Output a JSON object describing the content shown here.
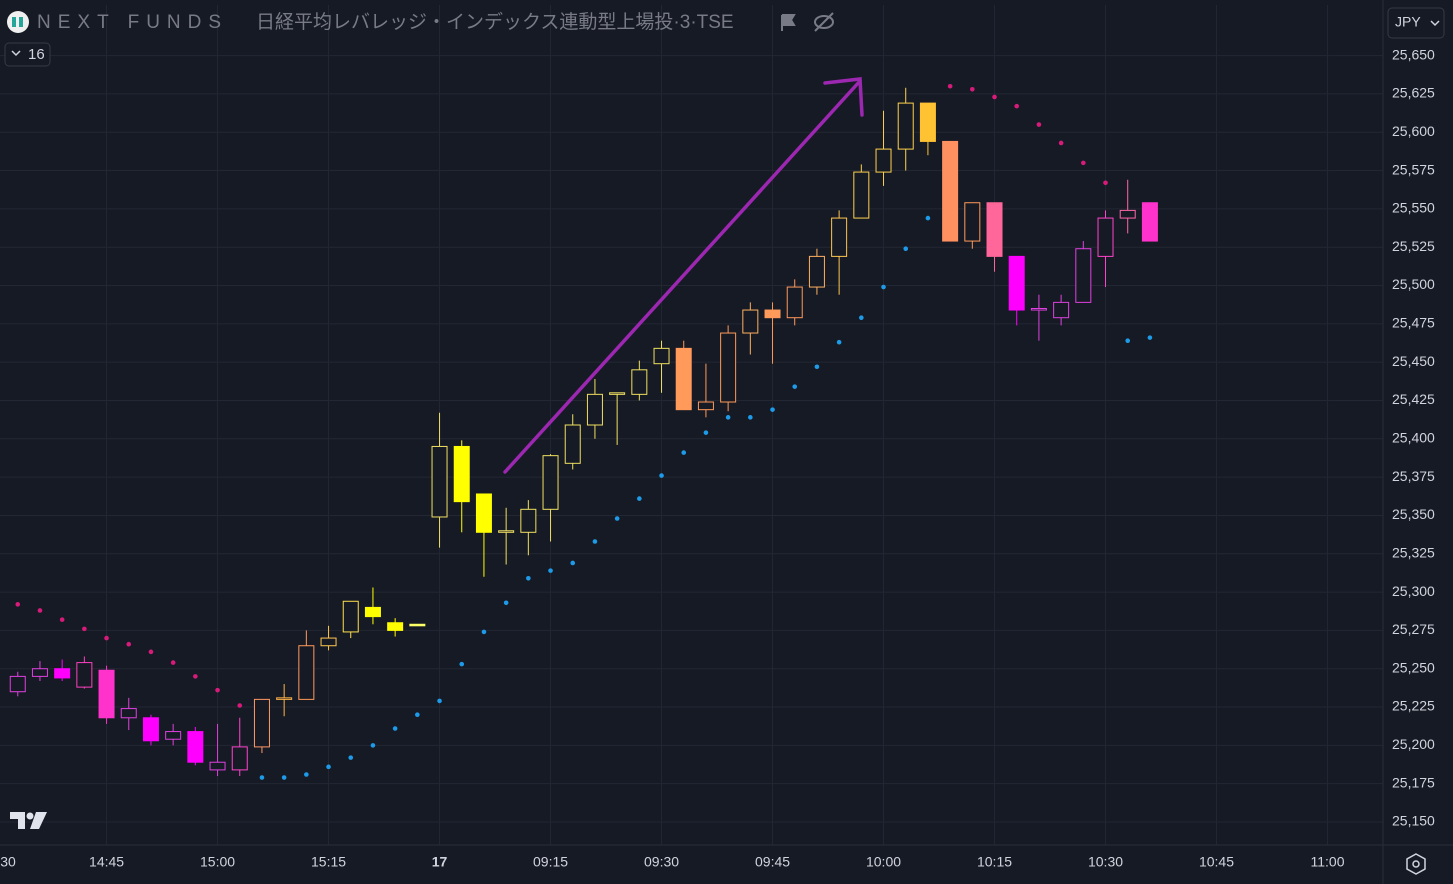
{
  "header": {
    "symbol": "NEXT FUNDS",
    "title": "日経平均レバレッジ・インデックス連動型上場投·3·TSE",
    "indicator_count": "16",
    "currency": "JPY"
  },
  "chart_data": {
    "type": "candlestick",
    "x": [
      -19,
      -18,
      -17,
      -16,
      -15,
      -14,
      -13,
      -12,
      -11,
      -10,
      -9,
      -8,
      -7,
      -6,
      -5,
      -4,
      -3,
      -2,
      -1,
      0,
      1,
      2,
      3,
      4,
      5,
      6,
      7,
      8,
      9,
      10,
      11,
      12,
      13,
      14,
      15,
      16,
      17,
      18,
      19,
      20,
      21,
      22,
      23,
      24,
      25,
      26,
      27,
      28,
      29,
      30,
      31,
      32
    ],
    "open": [
      25235,
      25245,
      25250,
      25238,
      25249,
      25218,
      25218,
      25204,
      25209,
      25184,
      25184,
      25199,
      25230,
      25230,
      25265,
      25274,
      25290,
      25280,
      25279,
      25349,
      25395,
      25364,
      25339,
      25339,
      25354,
      25384,
      25409,
      25429,
      25429,
      25449,
      25459,
      25419,
      25424,
      25469,
      25484,
      25479,
      25499,
      25519,
      25544,
      25574,
      25589,
      25619,
      25594,
      25529,
      25554,
      25519,
      25484,
      25479,
      25489,
      25519,
      25544,
      25554
    ],
    "high": [
      25248,
      25255,
      25256,
      25258,
      25252,
      25231,
      25220,
      25214,
      25212,
      25214,
      25218,
      25230,
      25240,
      25275,
      25278,
      25294,
      25303,
      25283,
      25279,
      25417,
      25399,
      25364,
      25355,
      25360,
      25390,
      25416,
      25439,
      25430,
      25451,
      25464,
      25464,
      25449,
      25474,
      25489,
      25489,
      25504,
      25524,
      25549,
      25579,
      25614,
      25629,
      25619,
      25594,
      25554,
      25554,
      25519,
      25494,
      25494,
      25529,
      25549,
      25569,
      25554
    ],
    "low": [
      25232,
      25242,
      25242,
      25237,
      25214,
      25210,
      25200,
      25200,
      25187,
      25180,
      25180,
      25195,
      25219,
      25230,
      25262,
      25270,
      25279,
      25271,
      25278,
      25329,
      25339,
      25310,
      25318,
      25324,
      25333,
      25380,
      25400,
      25396,
      25425,
      25430,
      25419,
      25414,
      25418,
      25455,
      25449,
      25474,
      25494,
      25494,
      25544,
      25565,
      25575,
      25585,
      25529,
      25524,
      25509,
      25474,
      25464,
      25474,
      25489,
      25499,
      25534,
      25529
    ],
    "close": [
      25245,
      25250,
      25244,
      25254,
      25218,
      25224,
      25203,
      25209,
      25189,
      25189,
      25199,
      25230,
      25231,
      25265,
      25270,
      25294,
      25284,
      25275,
      25278,
      25395,
      25359,
      25339,
      25340,
      25354,
      25389,
      25409,
      25429,
      25430,
      25445,
      25459,
      25419,
      25424,
      25469,
      25484,
      25479,
      25499,
      25519,
      25544,
      25574,
      25589,
      25619,
      25594,
      25529,
      25554,
      25519,
      25484,
      25485,
      25489,
      25524,
      25544,
      25549,
      25529
    ],
    "colors": [
      "#e040e0",
      "#e040e0",
      "#ff00ff",
      "#ff40c0",
      "#ff33cc",
      "#e040e0",
      "#ff00ff",
      "#e040e0",
      "#ff00ff",
      "#e040e0",
      "#ff44cc",
      "#ff9966",
      "#ffb347",
      "#ff9a5a",
      "#ffc64d",
      "#ffe14d",
      "#ffff00",
      "#ffff00",
      "#ffff66",
      "#f0e060",
      "#ffff00",
      "#ffff00",
      "#f0e060",
      "#f0e060",
      "#f0e060",
      "#f0e060",
      "#f0e060",
      "#f0e060",
      "#f0e060",
      "#f0e060",
      "#ff9a5a",
      "#ff9a5a",
      "#ff9a5a",
      "#ffb060",
      "#ff9a5a",
      "#ff9a5a",
      "#ffb060",
      "#ffc64d",
      "#ffd24d",
      "#ffd24d",
      "#ffd24d",
      "#ffc233",
      "#ff9060",
      "#ff9a5a",
      "#ff6699",
      "#ff00ff",
      "#e040e0",
      "#e040e0",
      "#e040e0",
      "#ff44cc",
      "#ff66aa",
      "#ff33cc"
    ],
    "sar": [
      {
        "color": "#d81b7a",
        "x": [
          -19,
          -18,
          -17,
          -16,
          -15,
          -14,
          -13,
          -12,
          -11,
          -10,
          -9,
          23,
          24,
          25,
          26,
          27,
          28,
          29,
          30
        ],
        "values": [
          25292,
          25288,
          25282,
          25276,
          25270,
          25266,
          25261,
          25254,
          25245,
          25236,
          25226,
          25630,
          25628,
          25623,
          25617,
          25605,
          25593,
          25580,
          25567
        ]
      },
      {
        "color": "#1e9be8",
        "x": [
          -8,
          -7,
          -6,
          -5,
          -4,
          -3,
          -2,
          -1,
          0,
          1,
          2,
          3,
          4,
          5,
          6,
          7,
          8,
          9,
          10,
          11,
          12,
          13,
          14,
          15,
          16,
          17,
          18,
          19,
          20,
          21,
          22,
          31,
          32
        ],
        "values": [
          25179,
          25179,
          25181,
          25186,
          25192,
          25200,
          25211,
          25220,
          25229,
          25253,
          25274,
          25293,
          25309,
          25314,
          25319,
          25333,
          25348,
          25361,
          25376,
          25391,
          25404,
          25414,
          25414,
          25419,
          25434,
          25447,
          25463,
          25479,
          25499,
          25524,
          25544,
          25464,
          25466
        ]
      }
    ],
    "xlim": [
      -19.8,
      42.5
    ],
    "xticks": [
      {
        "value": -20,
        "label": "30"
      },
      {
        "value": -15,
        "label": "14:45"
      },
      {
        "value": -10,
        "label": "15:00"
      },
      {
        "value": -5,
        "label": "15:15"
      },
      {
        "value": 0,
        "label": "17"
      },
      {
        "value": 5,
        "label": "09:15"
      },
      {
        "value": 10,
        "label": "09:30"
      },
      {
        "value": 15,
        "label": "09:45"
      },
      {
        "value": 20,
        "label": "10:00"
      },
      {
        "value": 25,
        "label": "10:15"
      },
      {
        "value": 30,
        "label": "10:30"
      },
      {
        "value": 35,
        "label": "10:45"
      },
      {
        "value": 40,
        "label": "11:00"
      }
    ],
    "ylim": [
      25135,
      25683
    ],
    "yticks": [
      {
        "value": 25150,
        "label": "25,150"
      },
      {
        "value": 25175,
        "label": "25,175"
      },
      {
        "value": 25200,
        "label": "25,200"
      },
      {
        "value": 25225,
        "label": "25,225"
      },
      {
        "value": 25250,
        "label": "25,250"
      },
      {
        "value": 25275,
        "label": "25,275"
      },
      {
        "value": 25300,
        "label": "25,300"
      },
      {
        "value": 25325,
        "label": "25,325"
      },
      {
        "value": 25350,
        "label": "25,350"
      },
      {
        "value": 25375,
        "label": "25,375"
      },
      {
        "value": 25400,
        "label": "25,400"
      },
      {
        "value": 25425,
        "label": "25,425"
      },
      {
        "value": 25450,
        "label": "25,450"
      },
      {
        "value": 25475,
        "label": "25,475"
      },
      {
        "value": 25500,
        "label": "25,500"
      },
      {
        "value": 25525,
        "label": "25,525"
      },
      {
        "value": 25550,
        "label": "25,550"
      },
      {
        "value": 25575,
        "label": "25,575"
      },
      {
        "value": 25600,
        "label": "25,600"
      },
      {
        "value": 25625,
        "label": "25,625"
      },
      {
        "value": 25650,
        "label": "25,650"
      }
    ],
    "grid": true,
    "background": "#161a25"
  }
}
